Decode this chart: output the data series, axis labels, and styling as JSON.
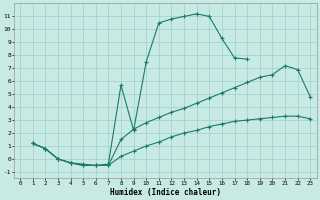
{
  "xlabel": "Humidex (Indice chaleur)",
  "background_color": "#c8eae4",
  "grid_color": "#a0cec8",
  "line_color": "#1a7a6e",
  "xlim": [
    -0.5,
    23.5
  ],
  "ylim": [
    -1.5,
    12
  ],
  "xticks": [
    0,
    1,
    2,
    3,
    4,
    5,
    6,
    7,
    8,
    9,
    10,
    11,
    12,
    13,
    14,
    15,
    16,
    17,
    18,
    19,
    20,
    21,
    22,
    23
  ],
  "yticks": [
    -1,
    0,
    1,
    2,
    3,
    4,
    5,
    6,
    7,
    8,
    9,
    10,
    11
  ],
  "line1_x": [
    1,
    2,
    3,
    4,
    5,
    6,
    7,
    8,
    9,
    10,
    11,
    12,
    13,
    14,
    15,
    16,
    17,
    18
  ],
  "line1_y": [
    1.2,
    0.8,
    0.0,
    -0.3,
    -0.4,
    -0.5,
    -0.4,
    5.7,
    2.2,
    7.5,
    10.5,
    10.8,
    11.0,
    11.2,
    11.0,
    9.3,
    7.8,
    7.7
  ],
  "line2_x": [
    1,
    2,
    3,
    4,
    5,
    6,
    7,
    8,
    9,
    10,
    11,
    12,
    13,
    14,
    15,
    16,
    17,
    18,
    19,
    20,
    21,
    22,
    23
  ],
  "line2_y": [
    1.2,
    0.8,
    0.0,
    -0.3,
    -0.5,
    -0.5,
    -0.5,
    1.5,
    2.3,
    2.8,
    3.2,
    3.6,
    3.9,
    4.3,
    4.7,
    5.1,
    5.5,
    5.9,
    6.3,
    6.5,
    7.2,
    6.9,
    4.8
  ],
  "line3_x": [
    1,
    2,
    3,
    4,
    5,
    6,
    7,
    8,
    9,
    10,
    11,
    12,
    13,
    14,
    15,
    16,
    17,
    18,
    19,
    20,
    21,
    22,
    23
  ],
  "line3_y": [
    1.2,
    0.8,
    0.0,
    -0.3,
    -0.5,
    -0.5,
    -0.5,
    0.2,
    0.6,
    1.0,
    1.3,
    1.7,
    2.0,
    2.2,
    2.5,
    2.7,
    2.9,
    3.0,
    3.1,
    3.2,
    3.3,
    3.3,
    3.1
  ],
  "marker": "+",
  "markersize": 3,
  "linewidth": 0.8
}
